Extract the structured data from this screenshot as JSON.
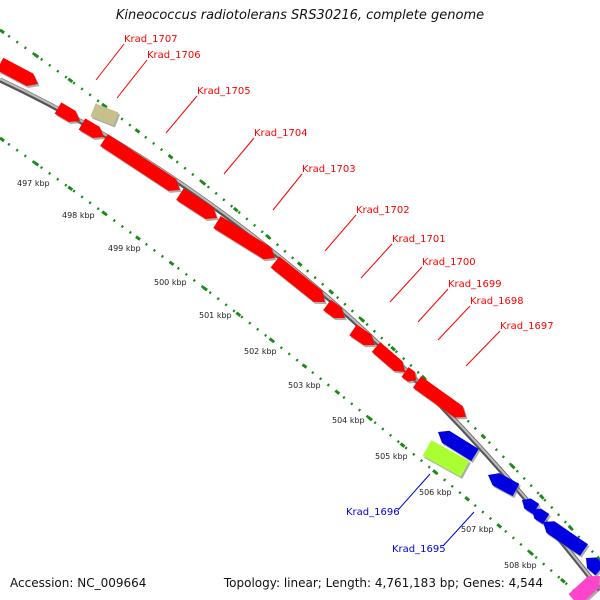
{
  "title": "Kineococcus radiotolerans SRS30216, complete genome",
  "footer": {
    "accession": "Accession: NC_009664",
    "summary": "Topology: linear; Length: 4,761,183 bp; Genes: 4,544"
  },
  "scale_labels": [
    "497 kbp",
    "498 kbp",
    "499 kbp",
    "500 kbp",
    "501 kbp",
    "502 kbp",
    "503 kbp",
    "504 kbp",
    "505 kbp",
    "506 kbp",
    "507 kbp",
    "508 kbp"
  ],
  "colors": {
    "forward": "#ff0000",
    "reverse": "#0000e0",
    "highlight": "#aaff33",
    "tan": "#c8c08a",
    "magenta": "#ff44cc",
    "backbone": "#888888",
    "dots": "#1a8a1a"
  },
  "genes_forward": [
    {
      "name": "Krad_1707",
      "color": "#ff0000"
    },
    {
      "name": "Krad_1706",
      "color": "#c8c08a"
    },
    {
      "name": "Krad_1705",
      "color": "#ff0000"
    },
    {
      "name": "Krad_1704",
      "color": "#ff0000"
    },
    {
      "name": "Krad_1703",
      "color": "#ff0000"
    },
    {
      "name": "Krad_1702",
      "color": "#ff0000"
    },
    {
      "name": "Krad_1701",
      "color": "#ff0000"
    },
    {
      "name": "Krad_1700",
      "color": "#ff0000"
    },
    {
      "name": "Krad_1699",
      "color": "#ff0000"
    },
    {
      "name": "Krad_1698",
      "color": "#ff0000"
    },
    {
      "name": "Krad_1697",
      "color": "#ff0000"
    }
  ],
  "genes_reverse": [
    {
      "name": "Krad_1696",
      "color": "#aaff33"
    },
    {
      "name": "Krad_1695",
      "color": "#0000e0"
    }
  ]
}
